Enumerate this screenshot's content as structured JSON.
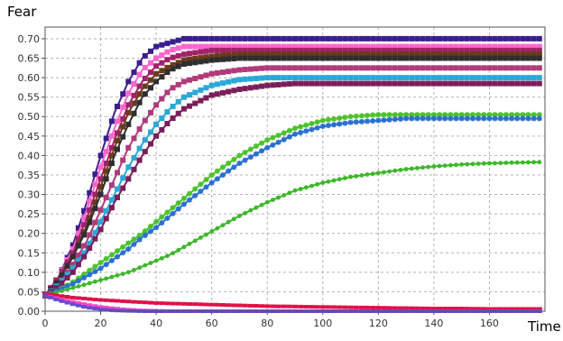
{
  "chart_data": {
    "type": "line",
    "xlabel": "Time",
    "ylabel": "Fear",
    "xlim": [
      0,
      180
    ],
    "ylim": [
      0,
      0.73
    ],
    "x_ticks": [
      "0",
      "20",
      "40",
      "60",
      "80",
      "100",
      "120",
      "140",
      "160"
    ],
    "y_ticks": [
      "0.00",
      "0.05",
      "0.10",
      "0.15",
      "0.20",
      "0.25",
      "0.30",
      "0.35",
      "0.40",
      "0.45",
      "0.50",
      "0.55",
      "0.60",
      "0.65",
      "0.70"
    ],
    "grid": true,
    "legend": false,
    "x": [
      0,
      5,
      10,
      15,
      20,
      25,
      30,
      35,
      40,
      45,
      50,
      60,
      70,
      80,
      90,
      100,
      110,
      120,
      130,
      140,
      150,
      160,
      170,
      178
    ],
    "series": [
      {
        "color": "#3a1e8c",
        "marker": "square",
        "values": [
          0.04,
          0.09,
          0.17,
          0.28,
          0.4,
          0.51,
          0.59,
          0.65,
          0.68,
          0.69,
          0.7,
          0.7,
          0.7,
          0.7,
          0.7,
          0.7,
          0.7,
          0.7,
          0.7,
          0.7,
          0.7,
          0.7,
          0.7,
          0.7
        ]
      },
      {
        "color": "#ff66cc",
        "marker": "square",
        "values": [
          0.04,
          0.09,
          0.16,
          0.26,
          0.37,
          0.47,
          0.56,
          0.62,
          0.65,
          0.67,
          0.68,
          0.68,
          0.68,
          0.68,
          0.68,
          0.68,
          0.68,
          0.68,
          0.68,
          0.68,
          0.68,
          0.68,
          0.68,
          0.68
        ]
      },
      {
        "color": "#a0226a",
        "marker": "square",
        "values": [
          0.04,
          0.09,
          0.15,
          0.24,
          0.34,
          0.44,
          0.53,
          0.59,
          0.63,
          0.65,
          0.66,
          0.67,
          0.67,
          0.67,
          0.67,
          0.67,
          0.67,
          0.67,
          0.67,
          0.67,
          0.67,
          0.67,
          0.67,
          0.67
        ]
      },
      {
        "color": "#6b3a1a",
        "marker": "square",
        "values": [
          0.04,
          0.08,
          0.14,
          0.22,
          0.32,
          0.42,
          0.51,
          0.57,
          0.61,
          0.63,
          0.645,
          0.655,
          0.66,
          0.66,
          0.66,
          0.66,
          0.66,
          0.66,
          0.66,
          0.66,
          0.66,
          0.66,
          0.66,
          0.66
        ]
      },
      {
        "color": "#2e2e2e",
        "marker": "square",
        "values": [
          0.04,
          0.08,
          0.14,
          0.21,
          0.3,
          0.4,
          0.48,
          0.55,
          0.59,
          0.62,
          0.635,
          0.645,
          0.65,
          0.65,
          0.65,
          0.65,
          0.65,
          0.65,
          0.65,
          0.65,
          0.65,
          0.65,
          0.65,
          0.65
        ]
      },
      {
        "color": "#b03a7a",
        "marker": "square",
        "values": [
          0.04,
          0.07,
          0.12,
          0.18,
          0.26,
          0.34,
          0.42,
          0.48,
          0.53,
          0.57,
          0.59,
          0.61,
          0.62,
          0.625,
          0.625,
          0.625,
          0.625,
          0.625,
          0.625,
          0.625,
          0.625,
          0.625,
          0.625,
          0.625
        ]
      },
      {
        "color": "#2aa8d8",
        "marker": "square",
        "values": [
          0.04,
          0.07,
          0.11,
          0.16,
          0.23,
          0.3,
          0.37,
          0.43,
          0.48,
          0.52,
          0.55,
          0.58,
          0.595,
          0.6,
          0.6,
          0.6,
          0.6,
          0.6,
          0.6,
          0.6,
          0.6,
          0.6,
          0.6,
          0.6
        ]
      },
      {
        "color": "#7a1e5a",
        "marker": "square",
        "values": [
          0.04,
          0.065,
          0.1,
          0.15,
          0.21,
          0.28,
          0.34,
          0.4,
          0.45,
          0.49,
          0.52,
          0.555,
          0.57,
          0.58,
          0.585,
          0.585,
          0.585,
          0.585,
          0.585,
          0.585,
          0.585,
          0.585,
          0.585,
          0.585
        ]
      },
      {
        "color": "#4cc22a",
        "marker": "star",
        "values": [
          0.04,
          0.055,
          0.075,
          0.1,
          0.125,
          0.15,
          0.175,
          0.2,
          0.23,
          0.26,
          0.29,
          0.35,
          0.4,
          0.44,
          0.47,
          0.49,
          0.5,
          0.505,
          0.505,
          0.505,
          0.505,
          0.505,
          0.505,
          0.505
        ]
      },
      {
        "color": "#2a6fd0",
        "marker": "star",
        "values": [
          0.04,
          0.055,
          0.07,
          0.09,
          0.11,
          0.135,
          0.16,
          0.19,
          0.215,
          0.245,
          0.275,
          0.33,
          0.38,
          0.42,
          0.455,
          0.475,
          0.485,
          0.49,
          0.495,
          0.495,
          0.495,
          0.495,
          0.495,
          0.495
        ]
      },
      {
        "color": "#3db82a",
        "marker": "circle",
        "values": [
          0.04,
          0.05,
          0.06,
          0.07,
          0.08,
          0.09,
          0.1,
          0.115,
          0.13,
          0.145,
          0.165,
          0.205,
          0.245,
          0.28,
          0.31,
          0.33,
          0.345,
          0.355,
          0.365,
          0.372,
          0.377,
          0.38,
          0.382,
          0.383
        ]
      },
      {
        "color": "#e0104a",
        "marker": "dash",
        "values": [
          0.045,
          0.04,
          0.035,
          0.032,
          0.029,
          0.027,
          0.025,
          0.023,
          0.021,
          0.02,
          0.019,
          0.017,
          0.015,
          0.013,
          0.012,
          0.011,
          0.01,
          0.009,
          0.008,
          0.007,
          0.007,
          0.006,
          0.006,
          0.006
        ]
      },
      {
        "color": "#ff44cc",
        "marker": "dash",
        "values": [
          0.04,
          0.032,
          0.024,
          0.017,
          0.011,
          0.007,
          0.004,
          0.002,
          0.001,
          0.0,
          0.0,
          0.0,
          0.0,
          0.0,
          0.0,
          0.0,
          0.0,
          0.0,
          0.0,
          0.0,
          0.0,
          0.0,
          0.0,
          0.0
        ]
      },
      {
        "color": "#6a4ad0",
        "marker": "dash",
        "values": [
          0.04,
          0.028,
          0.018,
          0.01,
          0.005,
          0.002,
          0.001,
          0.0,
          0.0,
          0.0,
          0.0,
          0.0,
          0.0,
          0.0,
          0.0,
          0.0,
          0.0,
          0.0,
          0.0,
          0.0,
          0.0,
          0.0,
          0.0,
          0.0
        ]
      }
    ]
  }
}
